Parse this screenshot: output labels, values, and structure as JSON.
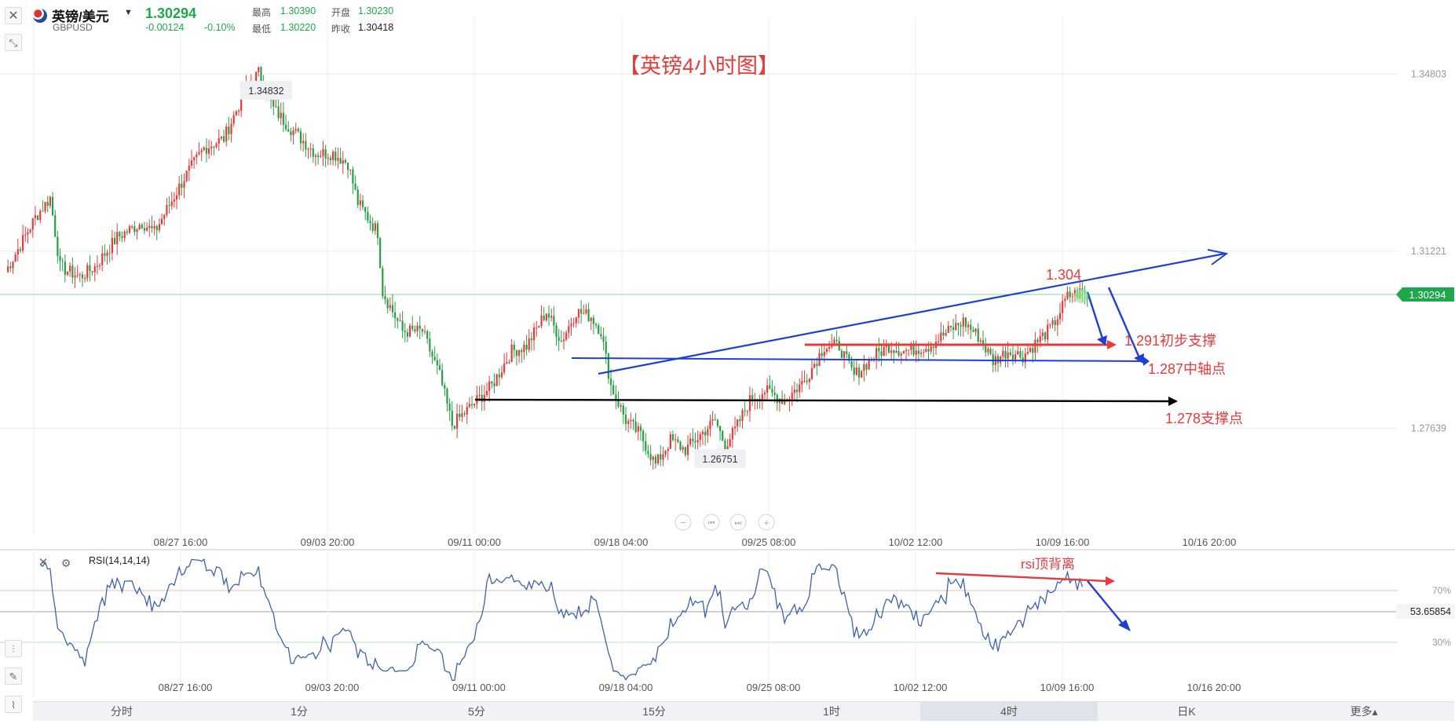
{
  "header": {
    "name": "英镑/美元",
    "code": "GBPUSD",
    "price": "1.30294",
    "change": "-0.00124",
    "change_pct": "-0.10%",
    "high_label": "最高",
    "high": "1.30390",
    "open_label": "开盘",
    "open": "1.30230",
    "low_label": "最低",
    "low": "1.30220",
    "prev_label": "昨收",
    "prev": "1.30418"
  },
  "colors": {
    "up": "#e43b3b",
    "down": "#26a043",
    "trend_blue": "#1e3fd6",
    "rsi": "#3d63a8"
  },
  "icons": {
    "close": "close-icon",
    "collapse": "collapse-icon",
    "settings": "gear-icon",
    "crosshair": "crosshair-icon",
    "draw": "pencil-icon",
    "indicator": "indicator-icon"
  },
  "chart_data": {
    "type": "candlestick",
    "title": "【英镑4小时图】",
    "ylim": [
      1.255,
      1.363
    ],
    "x_ticks": [
      "08/27 16:00",
      "09/03 20:00",
      "09/11 00:00",
      "09/18 04:00",
      "09/25 08:00",
      "10/02 12:00",
      "10/09 16:00",
      "10/16 20:00"
    ],
    "y_ticks": [
      "1.34803",
      "1.31221",
      "1.27639"
    ],
    "current_price": "1.30294",
    "high_label": "1.34832",
    "low_label": "1.26751",
    "waypoints": [
      [
        0,
        1.308
      ],
      [
        12,
        1.319
      ],
      [
        18,
        1.323
      ],
      [
        22,
        1.309
      ],
      [
        30,
        1.307
      ],
      [
        36,
        1.309
      ],
      [
        45,
        1.315
      ],
      [
        55,
        1.318
      ],
      [
        60,
        1.316
      ],
      [
        72,
        1.327
      ],
      [
        80,
        1.333
      ],
      [
        88,
        1.335
      ],
      [
        96,
        1.344
      ],
      [
        102,
        1.3483
      ],
      [
        108,
        1.341
      ],
      [
        115,
        1.337
      ],
      [
        125,
        1.332
      ],
      [
        132,
        1.332
      ],
      [
        138,
        1.33
      ],
      [
        142,
        1.322
      ],
      [
        150,
        1.316
      ],
      [
        152,
        1.304
      ],
      [
        160,
        1.296
      ],
      [
        168,
        1.296
      ],
      [
        175,
        1.287
      ],
      [
        180,
        1.277
      ],
      [
        188,
        1.281
      ],
      [
        196,
        1.285
      ],
      [
        204,
        1.292
      ],
      [
        210,
        1.293
      ],
      [
        218,
        1.3
      ],
      [
        224,
        1.294
      ],
      [
        230,
        1.3
      ],
      [
        236,
        1.299
      ],
      [
        240,
        1.296
      ],
      [
        244,
        1.285
      ],
      [
        250,
        1.278
      ],
      [
        256,
        1.275
      ],
      [
        262,
        1.269
      ],
      [
        268,
        1.274
      ],
      [
        274,
        1.272
      ],
      [
        280,
        1.275
      ],
      [
        286,
        1.278
      ],
      [
        290,
        1.273
      ],
      [
        294,
        1.276
      ],
      [
        300,
        1.282
      ],
      [
        306,
        1.284
      ],
      [
        314,
        1.282
      ],
      [
        322,
        1.286
      ],
      [
        330,
        1.293
      ],
      [
        336,
        1.293
      ],
      [
        342,
        1.287
      ],
      [
        350,
        1.291
      ],
      [
        356,
        1.293
      ],
      [
        362,
        1.292
      ],
      [
        372,
        1.293
      ],
      [
        380,
        1.296
      ],
      [
        386,
        1.298
      ],
      [
        392,
        1.295
      ],
      [
        398,
        1.29
      ],
      [
        404,
        1.292
      ],
      [
        410,
        1.291
      ],
      [
        416,
        1.294
      ],
      [
        422,
        1.297
      ],
      [
        428,
        1.303
      ],
      [
        434,
        1.304
      ],
      [
        436,
        1.3029
      ]
    ],
    "annotations": [
      {
        "text": "1.304",
        "price": 1.304
      },
      {
        "text": "1.291初步支撑",
        "price": 1.291
      },
      {
        "text": "1.287中轴点",
        "price": 1.287
      },
      {
        "text": "1.278支撑点",
        "price": 1.278
      }
    ],
    "nav_buttons": [
      "−",
      "⏮",
      "⏭",
      "+"
    ]
  },
  "rsi": {
    "label": "RSI(14,14,14)",
    "value": "53.65854",
    "levels": [
      "70%",
      "30%"
    ],
    "annotation": "rsi顶背离",
    "x_ticks": [
      "08/27 16:00",
      "09/03 20:00",
      "09/11 00:00",
      "09/18 04:00",
      "09/25 08:00",
      "10/02 12:00",
      "10/09 16:00",
      "10/16 20:00"
    ]
  },
  "timeframes": [
    {
      "label": "分时",
      "active": false
    },
    {
      "label": "1分",
      "active": false
    },
    {
      "label": "5分",
      "active": false
    },
    {
      "label": "15分",
      "active": false
    },
    {
      "label": "1时",
      "active": false
    },
    {
      "label": "4时",
      "active": true
    },
    {
      "label": "日K",
      "active": false
    },
    {
      "label": "更多▴",
      "active": false
    }
  ]
}
